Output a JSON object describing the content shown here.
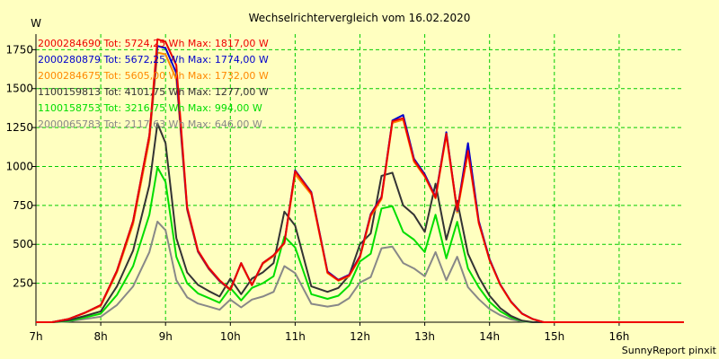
{
  "chart_data": {
    "type": "line",
    "title": "Wechselrichtervergleich vom 16.02.2020",
    "ylabel": "W",
    "footer": "SunnyReport pinxit",
    "xlim": [
      7.0,
      17.0
    ],
    "ylim": [
      0,
      1850
    ],
    "xticks": [
      {
        "value": 7,
        "label": "7h"
      },
      {
        "value": 8,
        "label": "8h"
      },
      {
        "value": 9,
        "label": "9h"
      },
      {
        "value": 10,
        "label": "10h"
      },
      {
        "value": 11,
        "label": "11h"
      },
      {
        "value": 12,
        "label": "12h"
      },
      {
        "value": 13,
        "label": "13h"
      },
      {
        "value": 14,
        "label": "14h"
      },
      {
        "value": 15,
        "label": "15h"
      },
      {
        "value": 16,
        "label": "16h"
      }
    ],
    "yticks": [
      {
        "value": 250,
        "label": "250"
      },
      {
        "value": 500,
        "label": "500"
      },
      {
        "value": 750,
        "label": "750"
      },
      {
        "value": 1000,
        "label": "1000"
      },
      {
        "value": 1250,
        "label": "1250"
      },
      {
        "value": 1500,
        "label": "1500"
      },
      {
        "value": 1750,
        "label": "1750"
      }
    ],
    "grid": true,
    "x": [
      7.0,
      7.25,
      7.5,
      7.75,
      8.0,
      8.25,
      8.5,
      8.75,
      8.875,
      9.0,
      9.167,
      9.333,
      9.5,
      9.667,
      9.833,
      10.0,
      10.167,
      10.333,
      10.5,
      10.667,
      10.833,
      11.0,
      11.25,
      11.5,
      11.667,
      11.833,
      12.0,
      12.167,
      12.333,
      12.5,
      12.667,
      12.833,
      13.0,
      13.167,
      13.333,
      13.5,
      13.667,
      13.833,
      14.0,
      14.167,
      14.333,
      14.5,
      14.667,
      14.833,
      15.0,
      15.167,
      15.333,
      15.5,
      15.667,
      15.833,
      16.0,
      16.167,
      16.333,
      16.5,
      16.667,
      16.833,
      17.0
    ],
    "series": [
      {
        "name": "2000284690",
        "legend": "2000284690 Tot: 5724,25 Wh Max: 1817,00 W",
        "color": "#ee0000",
        "values": [
          0,
          0,
          20,
          60,
          110,
          330,
          650,
          1200,
          1817,
          1800,
          1650,
          740,
          460,
          350,
          270,
          210,
          380,
          240,
          380,
          430,
          510,
          970,
          830,
          320,
          270,
          300,
          420,
          690,
          800,
          1290,
          1310,
          1040,
          940,
          800,
          1210,
          720,
          1100,
          640,
          400,
          240,
          130,
          55,
          20,
          0,
          0,
          0,
          0,
          0,
          0,
          0,
          0,
          0,
          0,
          0,
          0,
          0,
          0
        ]
      },
      {
        "name": "2000280879",
        "legend": "2000280879 Tot: 5672,25 Wh Max: 1774,00 W",
        "color": "#0000cc",
        "values": [
          0,
          0,
          20,
          60,
          110,
          330,
          650,
          1200,
          1774,
          1760,
          1600,
          730,
          455,
          345,
          265,
          210,
          380,
          240,
          380,
          430,
          510,
          975,
          835,
          325,
          272,
          305,
          425,
          695,
          805,
          1295,
          1330,
          1050,
          950,
          805,
          1220,
          715,
          1150,
          650,
          405,
          242,
          132,
          56,
          20,
          0,
          0,
          0,
          0,
          0,
          0,
          0,
          0,
          0,
          0,
          0,
          0,
          0,
          0
        ]
      },
      {
        "name": "2000284675",
        "legend": "2000284675 Tot: 5605,00 Wh Max: 1732,00 W",
        "color": "#ff8800",
        "values": [
          0,
          0,
          20,
          58,
          105,
          320,
          630,
          1170,
          1732,
          1720,
          1560,
          720,
          450,
          340,
          262,
          205,
          375,
          236,
          375,
          425,
          505,
          950,
          820,
          315,
          266,
          295,
          415,
          680,
          790,
          1280,
          1300,
          1030,
          935,
          795,
          1200,
          705,
          1090,
          635,
          398,
          238,
          128,
          54,
          19,
          0,
          0,
          0,
          0,
          0,
          0,
          0,
          0,
          0,
          0,
          0,
          0,
          0,
          0
        ]
      },
      {
        "name": "1100159813",
        "legend": "1100159813 Tot: 4101,75 Wh Max: 1277,00 W",
        "color": "#333333",
        "values": [
          0,
          0,
          12,
          40,
          70,
          230,
          460,
          880,
          1277,
          1150,
          540,
          320,
          240,
          200,
          165,
          280,
          180,
          280,
          320,
          380,
          710,
          620,
          230,
          195,
          220,
          300,
          500,
          570,
          940,
          960,
          750,
          690,
          580,
          890,
          530,
          780,
          440,
          290,
          170,
          90,
          40,
          10,
          0,
          0,
          0,
          0,
          0,
          0,
          0,
          0,
          0,
          0,
          0,
          0,
          0,
          0,
          0
        ]
      },
      {
        "name": "1100158753",
        "legend": "1100158753 Tot: 3216,75 Wh Max: 994,00 W",
        "color": "#00dd00",
        "values": [
          0,
          0,
          8,
          30,
          55,
          175,
          360,
          690,
          994,
          900,
          420,
          250,
          185,
          155,
          125,
          220,
          140,
          220,
          250,
          295,
          550,
          480,
          180,
          150,
          170,
          235,
          390,
          440,
          730,
          745,
          580,
          530,
          450,
          690,
          410,
          645,
          345,
          225,
          130,
          70,
          30,
          8,
          0,
          0,
          0,
          0,
          0,
          0,
          0,
          0,
          0,
          0,
          0,
          0,
          0,
          0,
          0
        ]
      },
      {
        "name": "2000065783",
        "legend": "2000065783 Tot: 2117,63 Wh Max: 646,00 W",
        "color": "#888888",
        "values": [
          0,
          0,
          5,
          20,
          35,
          110,
          230,
          450,
          646,
          590,
          270,
          160,
          120,
          100,
          80,
          145,
          95,
          145,
          165,
          195,
          360,
          315,
          118,
          100,
          112,
          155,
          255,
          290,
          475,
          485,
          380,
          345,
          295,
          450,
          270,
          420,
          225,
          148,
          85,
          45,
          18,
          5,
          0,
          0,
          0,
          0,
          0,
          0,
          0,
          0,
          0,
          0,
          0,
          0,
          0,
          0,
          0
        ]
      }
    ]
  }
}
